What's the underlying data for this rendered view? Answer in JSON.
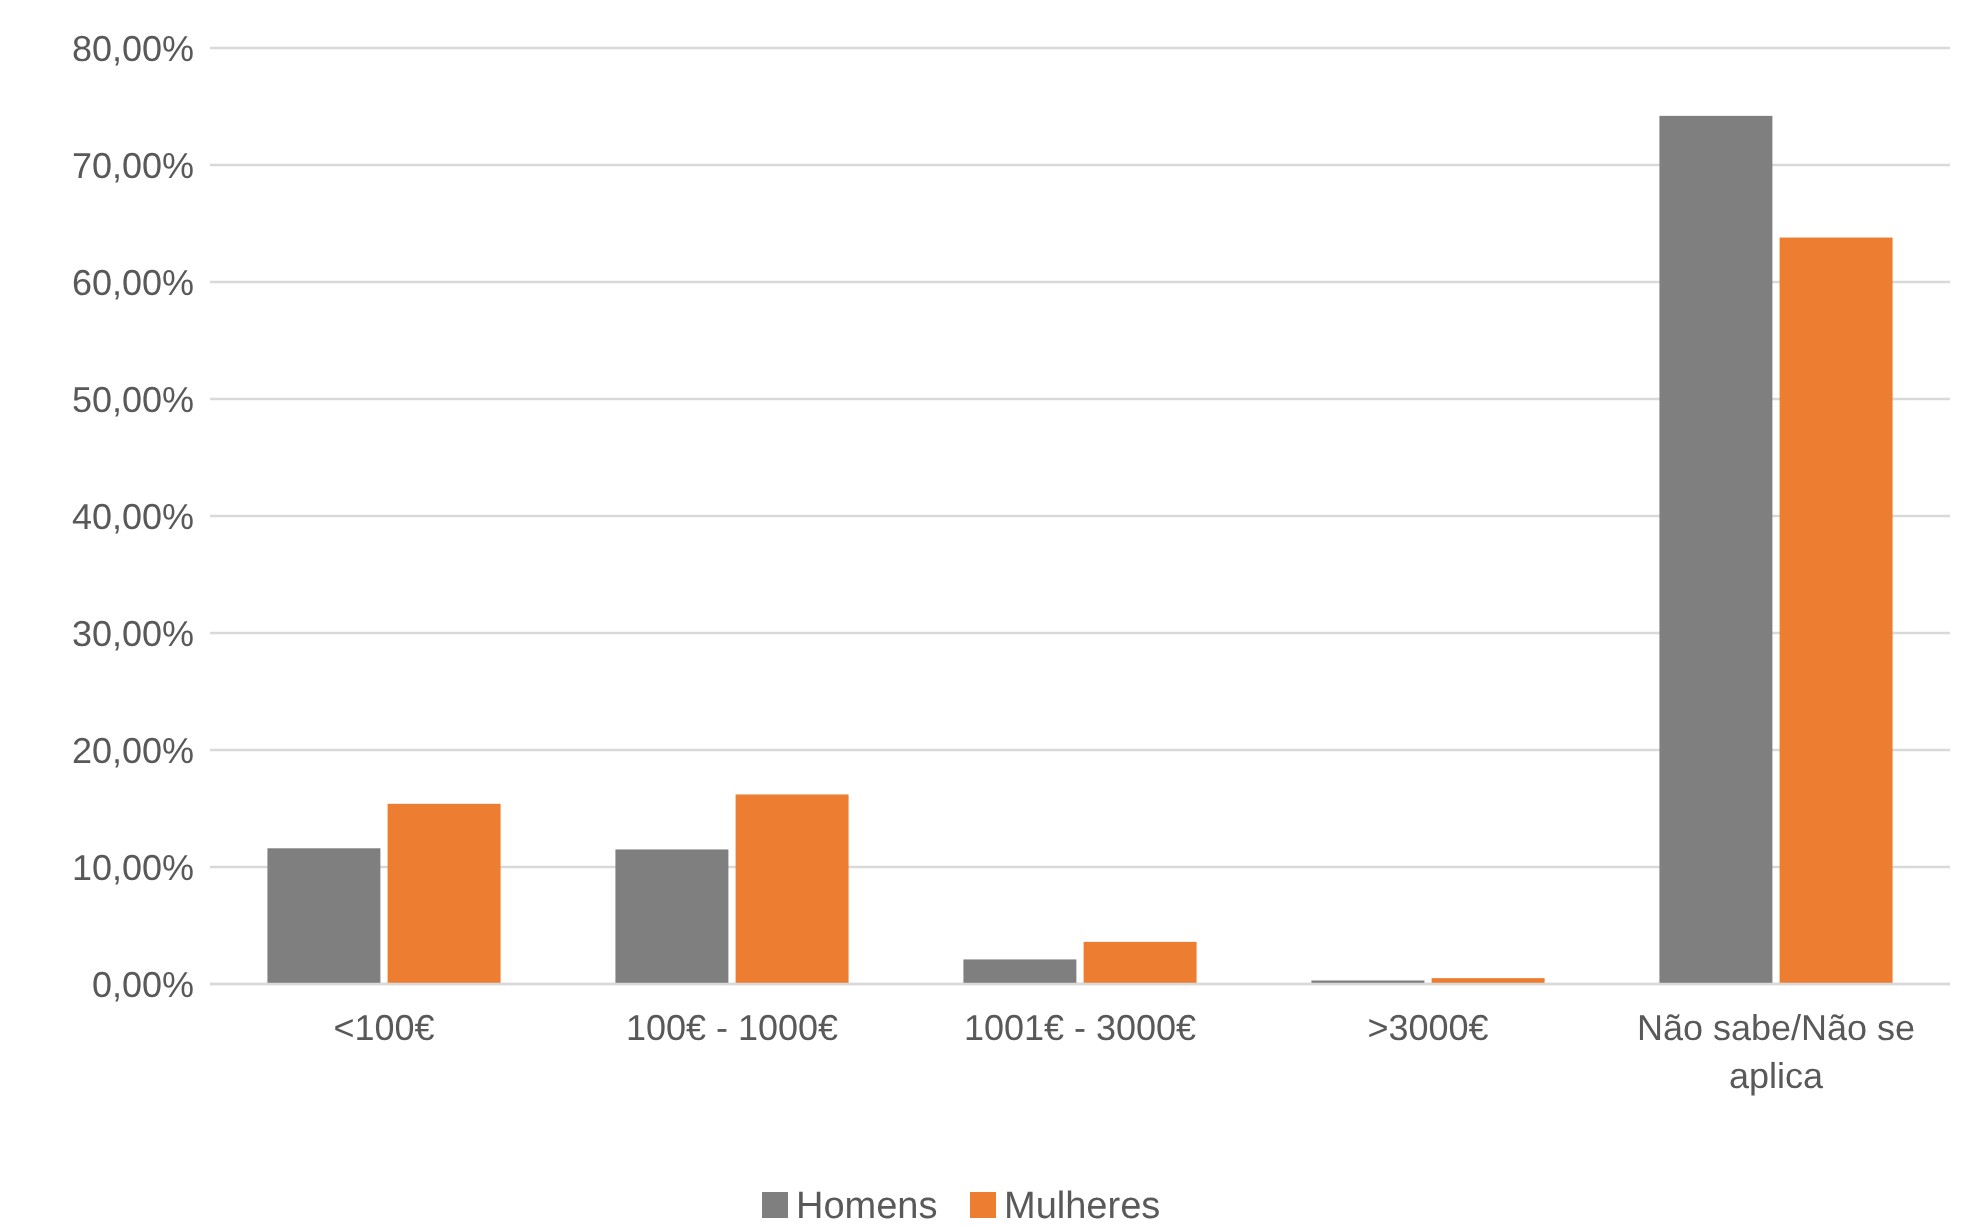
{
  "chart_data": {
    "type": "bar",
    "categories": [
      "<100€",
      "100€ - 1000€",
      "1001€ - 3000€",
      ">3000€",
      "Não sabe/Não se aplica"
    ],
    "series": [
      {
        "name": "Homens",
        "color": "#7f7f7f",
        "values": [
          11.6,
          11.5,
          2.1,
          0.3,
          74.2
        ]
      },
      {
        "name": "Mulheres",
        "color": "#ed7d31",
        "values": [
          15.4,
          16.2,
          3.6,
          0.5,
          63.8
        ]
      }
    ],
    "ylim": [
      0,
      80
    ],
    "yticks": [
      {
        "value": 0,
        "label": "0,00%"
      },
      {
        "value": 10,
        "label": "10,00%"
      },
      {
        "value": 20,
        "label": "20,00%"
      },
      {
        "value": 30,
        "label": "30,00%"
      },
      {
        "value": 40,
        "label": "40,00%"
      },
      {
        "value": 50,
        "label": "50,00%"
      },
      {
        "value": 60,
        "label": "60,00%"
      },
      {
        "value": 70,
        "label": "70,00%"
      },
      {
        "value": 80,
        "label": "80,00%"
      }
    ],
    "grid": "y",
    "legend": "bottom"
  }
}
